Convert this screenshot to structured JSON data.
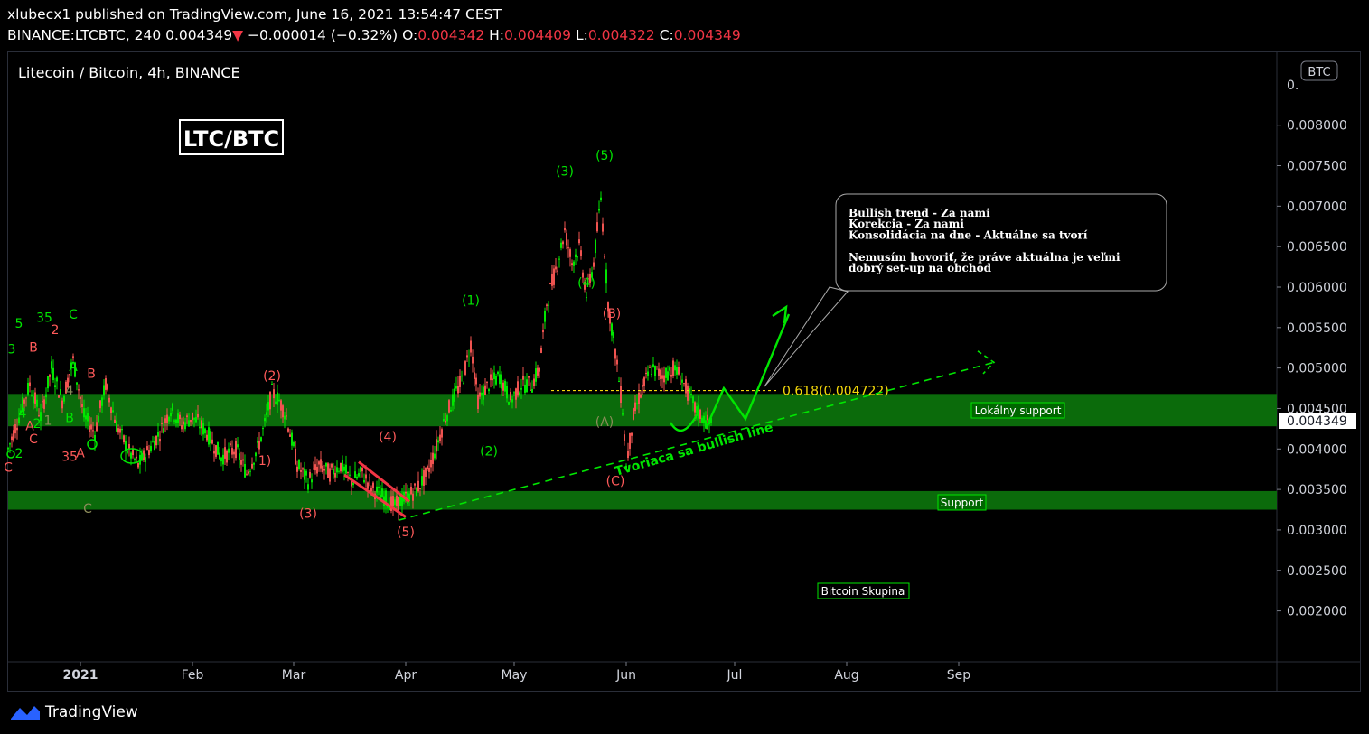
{
  "header": {
    "published": "xlubecx1 published on TradingView.com, June 16, 2021 13:54:47 CEST",
    "symbol": "BINANCE:LTCBTC, 240",
    "last": "0.004349",
    "change": "−0.000014 (−0.32%)",
    "o_label": "O:",
    "o": "0.004342",
    "h_label": "H:",
    "h": "0.004409",
    "l_label": "L:",
    "l": "0.004322",
    "c_label": "C:",
    "c": "0.004349"
  },
  "chart_title": "Litecoin / Bitcoin, 4h, BINANCE",
  "currency_badge": "BTC",
  "big_label": "LTC/BTC",
  "footer": {
    "brand": "TradingView"
  },
  "colors": {
    "up": "#26a69a",
    "down": "#ef5350",
    "green": "#00e600",
    "band": "#0b6b0b",
    "fib": "#f5d90a"
  },
  "chart_data": {
    "type": "line",
    "title": "Litecoin / Bitcoin, 4h, BINANCE",
    "x_ticks": [
      "2021",
      "Feb",
      "Mar",
      "Apr",
      "May",
      "Jun",
      "Jul",
      "Aug",
      "Sep"
    ],
    "x_tick_days": [
      0,
      31,
      59,
      90,
      120,
      151,
      181,
      212,
      243
    ],
    "y_ticks": [
      "0.008000",
      "0.007500",
      "0.007000",
      "0.006500",
      "0.006000",
      "0.005500",
      "0.005000",
      "0.004500",
      "0.004000",
      "0.003500",
      "0.003000",
      "0.002500",
      "0.002000"
    ],
    "y_tick_values": [
      0.008,
      0.0075,
      0.007,
      0.0065,
      0.006,
      0.0055,
      0.005,
      0.0045,
      0.004,
      0.0035,
      0.003,
      0.0025,
      0.002
    ],
    "ylim": [
      0.00146,
      0.0089
    ],
    "xlim": [
      -20,
      331
    ],
    "last_price_label": "0.004349",
    "last_price": 0.004349,
    "price_path": [
      [
        -20,
        0.004
      ],
      [
        -17,
        0.0044
      ],
      [
        -14,
        0.0048
      ],
      [
        -11,
        0.0044
      ],
      [
        -8,
        0.005
      ],
      [
        -5,
        0.0046
      ],
      [
        -2,
        0.0051
      ],
      [
        1,
        0.0044
      ],
      [
        4,
        0.0042
      ],
      [
        7,
        0.0048
      ],
      [
        10,
        0.0043
      ],
      [
        13,
        0.004
      ],
      [
        16,
        0.0038
      ],
      [
        19,
        0.004
      ],
      [
        22,
        0.0042
      ],
      [
        25,
        0.0045
      ],
      [
        28,
        0.0043
      ],
      [
        31,
        0.0044
      ],
      [
        35,
        0.0042
      ],
      [
        39,
        0.0039
      ],
      [
        43,
        0.004
      ],
      [
        46,
        0.0037
      ],
      [
        49,
        0.004
      ],
      [
        51,
        0.0043
      ],
      [
        53,
        0.0047
      ],
      [
        55,
        0.0046
      ],
      [
        57,
        0.0044
      ],
      [
        60,
        0.0038
      ],
      [
        63,
        0.0036
      ],
      [
        66,
        0.0038
      ],
      [
        69,
        0.0037
      ],
      [
        72,
        0.0038
      ],
      [
        75,
        0.0036
      ],
      [
        78,
        0.0037
      ],
      [
        81,
        0.0035
      ],
      [
        84,
        0.0034
      ],
      [
        87,
        0.0033
      ],
      [
        90,
        0.0034
      ],
      [
        93,
        0.0035
      ],
      [
        96,
        0.0037
      ],
      [
        99,
        0.0041
      ],
      [
        101,
        0.0044
      ],
      [
        103,
        0.0046
      ],
      [
        106,
        0.0049
      ],
      [
        108,
        0.0053
      ],
      [
        110,
        0.0046
      ],
      [
        113,
        0.0048
      ],
      [
        116,
        0.0049
      ],
      [
        119,
        0.0046
      ],
      [
        122,
        0.0048
      ],
      [
        125,
        0.0048
      ],
      [
        127,
        0.005
      ],
      [
        129,
        0.0058
      ],
      [
        132,
        0.0063
      ],
      [
        134,
        0.0067
      ],
      [
        136,
        0.0063
      ],
      [
        138,
        0.0065
      ],
      [
        140,
        0.0059
      ],
      [
        142,
        0.0063
      ],
      [
        144,
        0.0071
      ],
      [
        146,
        0.0058
      ],
      [
        148,
        0.0052
      ],
      [
        150,
        0.0045
      ],
      [
        151,
        0.0038
      ],
      [
        153,
        0.0044
      ],
      [
        155,
        0.0047
      ],
      [
        158,
        0.005
      ],
      [
        161,
        0.0049
      ],
      [
        164,
        0.005
      ],
      [
        166,
        0.0049
      ],
      [
        168,
        0.0047
      ],
      [
        170,
        0.0045
      ],
      [
        172,
        0.0044
      ],
      [
        174,
        0.0043
      ],
      [
        175,
        0.004349
      ]
    ],
    "labels": [
      {
        "t": "(1)",
        "x": 108,
        "y": 0.00578,
        "c": "green"
      },
      {
        "t": "(2)",
        "x": 113,
        "y": 0.00392,
        "c": "green"
      },
      {
        "t": "(3)",
        "x": 134,
        "y": 0.00738,
        "c": "green"
      },
      {
        "t": "(4)",
        "x": 140,
        "y": 0.006,
        "c": "green"
      },
      {
        "t": "(5)",
        "x": 145,
        "y": 0.00757,
        "c": "green"
      },
      {
        "t": "(B)",
        "x": 147,
        "y": 0.00562,
        "c": "red"
      },
      {
        "t": "(A)",
        "x": 145,
        "y": 0.00428,
        "c": "olive"
      },
      {
        "t": "(C)",
        "x": 148,
        "y": 0.00355,
        "c": "red"
      },
      {
        "t": "(2)",
        "x": 53,
        "y": 0.00485,
        "c": "red"
      },
      {
        "t": "(3)",
        "x": 63,
        "y": 0.00315,
        "c": "red"
      },
      {
        "t": "(4)",
        "x": 85,
        "y": 0.0041,
        "c": "red"
      },
      {
        "t": "(5)",
        "x": 90,
        "y": 0.00292,
        "c": "red"
      },
      {
        "t": "1)",
        "x": 51,
        "y": 0.0038,
        "c": "red"
      },
      {
        "t": "5",
        "x": -17,
        "y": 0.0055,
        "c": "green"
      },
      {
        "t": "3",
        "x": -19,
        "y": 0.00518,
        "c": "green"
      },
      {
        "t": "B",
        "x": -13,
        "y": 0.0052,
        "c": "red"
      },
      {
        "t": "35",
        "x": -10,
        "y": 0.00557,
        "c": "green"
      },
      {
        "t": "2",
        "x": -7,
        "y": 0.00542,
        "c": "red"
      },
      {
        "t": "C",
        "x": -2,
        "y": 0.00561,
        "c": "green"
      },
      {
        "t": "A",
        "x": -2,
        "y": 0.00496,
        "c": "green"
      },
      {
        "t": "B",
        "x": 3,
        "y": 0.00488,
        "c": "red"
      },
      {
        "t": "A",
        "x": -14,
        "y": 0.00423,
        "c": "red"
      },
      {
        "t": "2",
        "x": -12,
        "y": 0.00426,
        "c": "green"
      },
      {
        "t": "1",
        "x": -9,
        "y": 0.0043,
        "c": "olive"
      },
      {
        "t": "C",
        "x": -13,
        "y": 0.00407,
        "c": "red"
      },
      {
        "t": "2",
        "x": -17,
        "y": 0.00389,
        "c": "green"
      },
      {
        "t": "4",
        "x": -16,
        "y": 0.00439,
        "c": "green"
      },
      {
        "t": "B",
        "x": -3,
        "y": 0.00433,
        "c": "green"
      },
      {
        "t": "35",
        "x": -3,
        "y": 0.00385,
        "c": "red"
      },
      {
        "t": "A",
        "x": 0,
        "y": 0.0039,
        "c": "red"
      },
      {
        "t": "C",
        "x": 2,
        "y": 0.00321,
        "c": "olive"
      },
      {
        "t": "C",
        "x": -20,
        "y": 0.00372,
        "c": "red"
      },
      {
        "t": "4",
        "x": -3,
        "y": 0.00467,
        "c": "olive"
      }
    ],
    "fib_label": "0.618(0.004722)",
    "fib_value": 0.004722,
    "zones": [
      {
        "name": "Lokálny support",
        "from": 0.00428,
        "to": 0.00468
      },
      {
        "name": "Support",
        "from": 0.00325,
        "to": 0.00348
      }
    ],
    "trendline_label": "Tvoriaca sa bullish line",
    "note": {
      "lines": [
        "Bullish trend - Za nami",
        "Korekcia - Za nami",
        "Konsolidácia na dne - Aktuálne sa tvorí",
        "",
        "Nemusím hovoriť, že práve aktuálna je veľmi",
        "dobrý set-up na obchod"
      ]
    },
    "watermark_label": "Bitcoin Skupina"
  }
}
